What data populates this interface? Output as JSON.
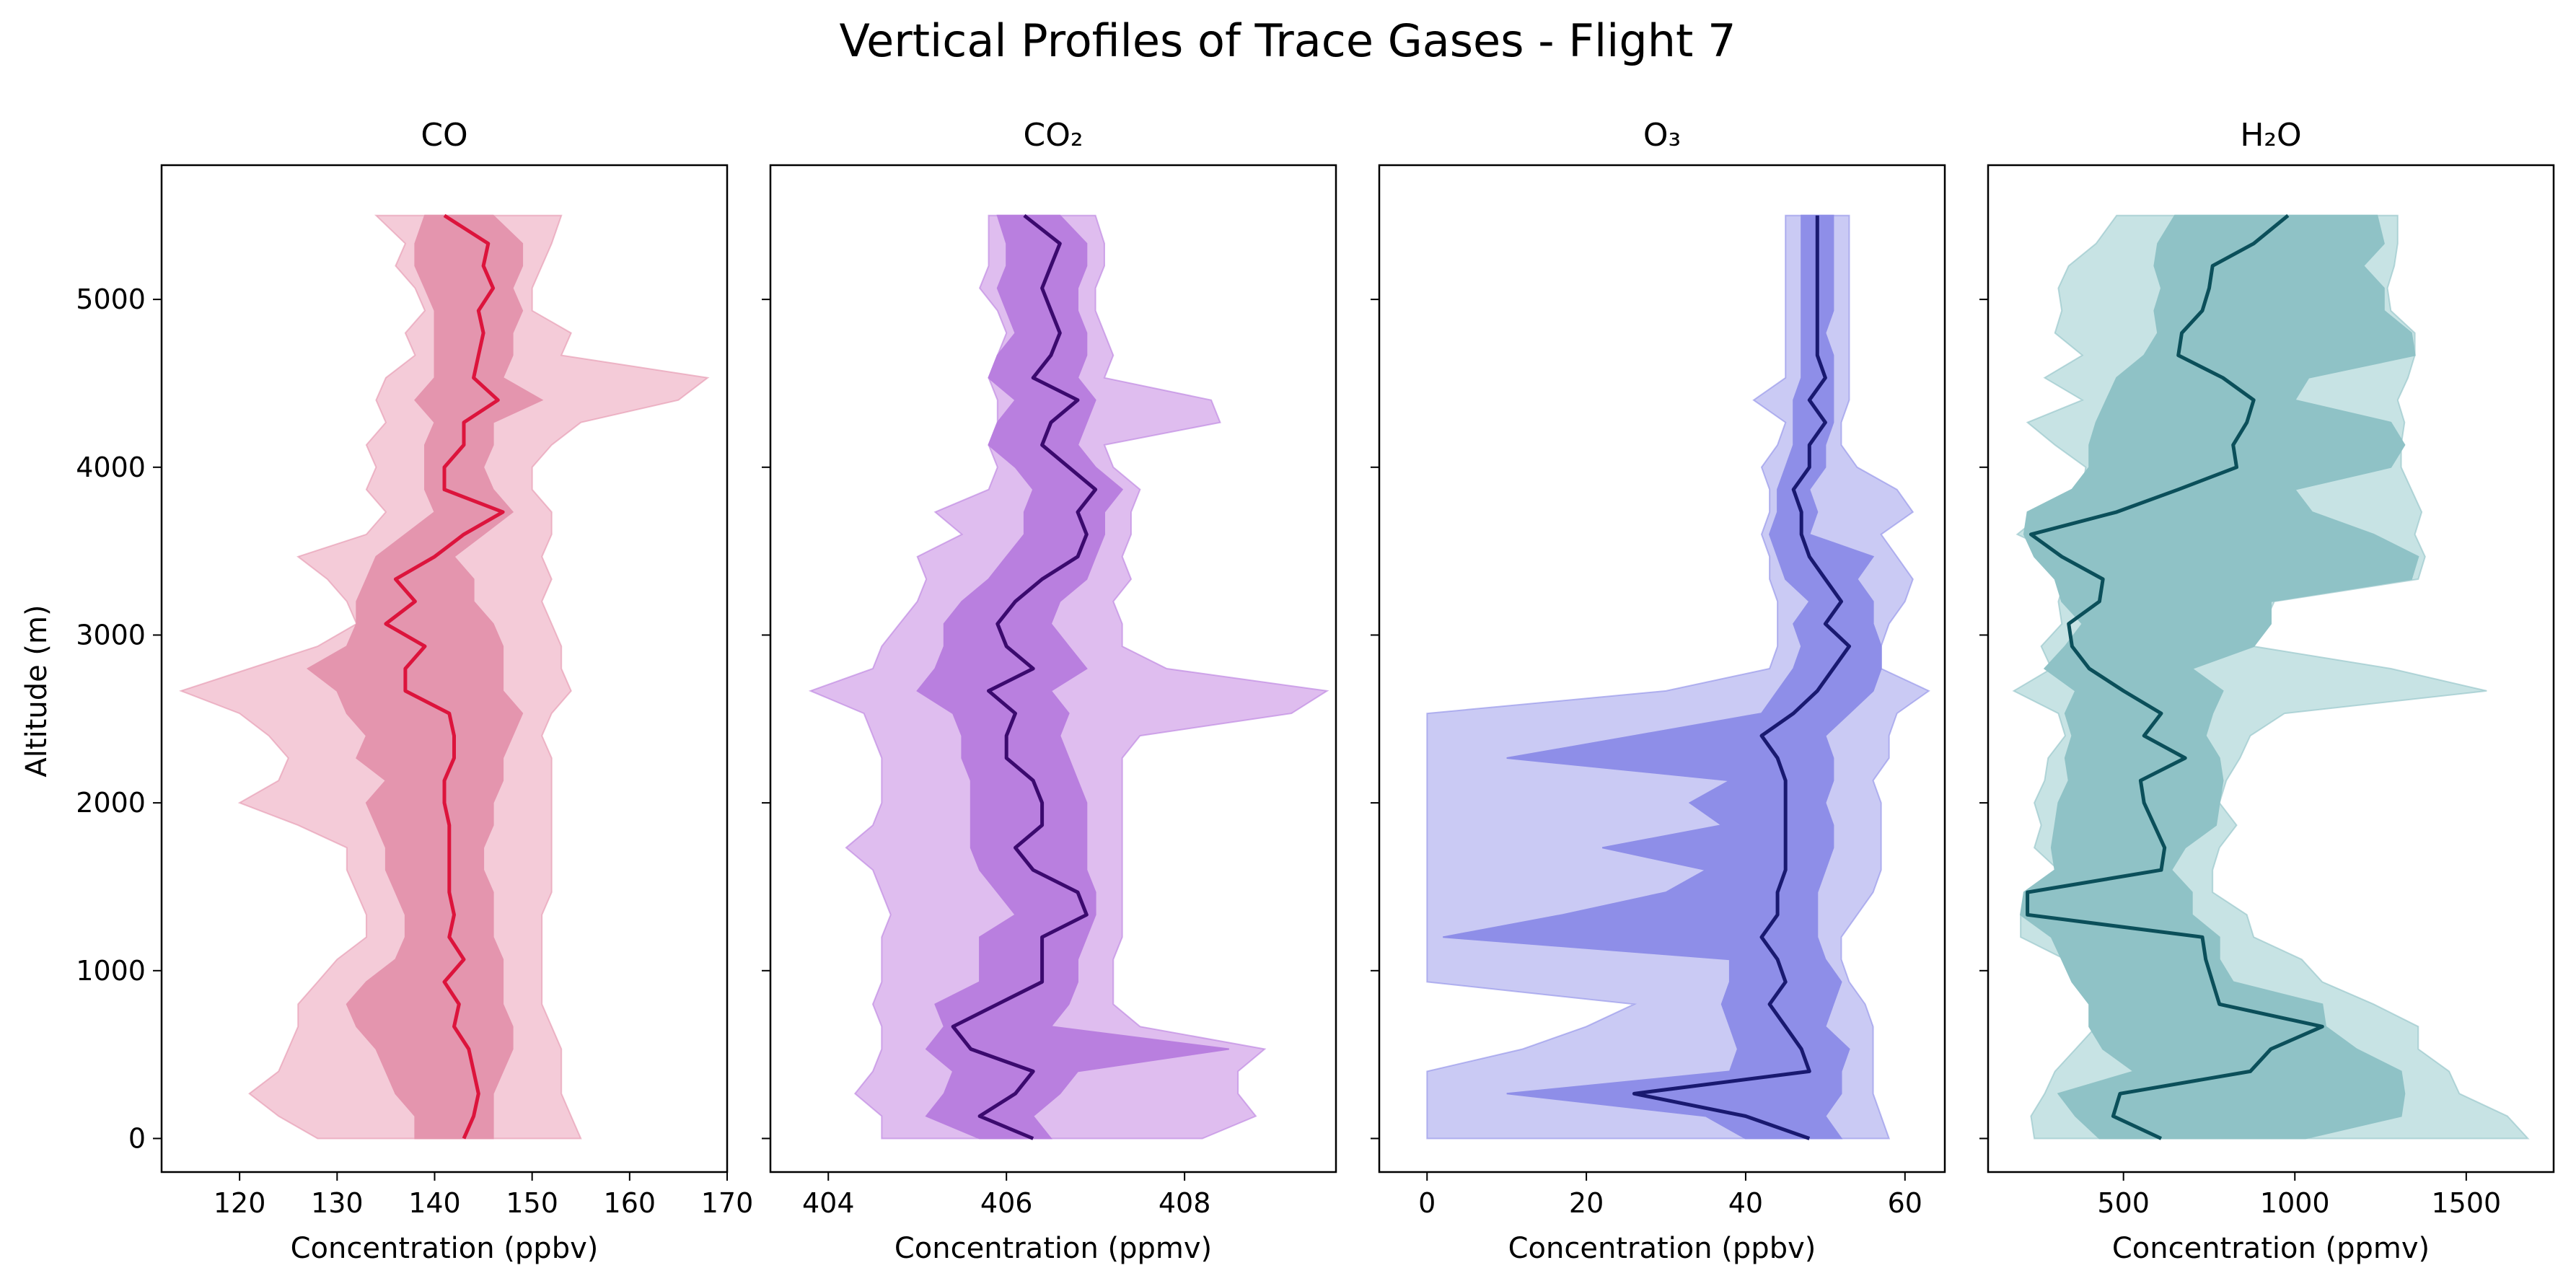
{
  "figure_title": "Vertical Profiles of Trace Gases - Flight 7",
  "y_axis_label": "Altitude (m)",
  "y_ticks": [
    0,
    1000,
    2000,
    3000,
    4000,
    5000
  ],
  "chart_data": [
    {
      "type": "line",
      "title": "CO",
      "xlabel": "Concentration (ppbv)",
      "ylabel": "Altitude (m)",
      "xlim": [
        112,
        170
      ],
      "ylim": [
        -200,
        5800
      ],
      "x_ticks": [
        120,
        130,
        140,
        150,
        160,
        170
      ],
      "color": "#dc143c",
      "band_colors": {
        "outer": "#f4cbd8",
        "inner": "#e495ae"
      },
      "altitude": [
        0,
        133,
        267,
        400,
        533,
        667,
        800,
        933,
        1067,
        1200,
        1333,
        1467,
        1600,
        1733,
        1867,
        2000,
        2133,
        2267,
        2400,
        2533,
        2667,
        2800,
        2933,
        3067,
        3200,
        3333,
        3467,
        3600,
        3733,
        3867,
        4000,
        4133,
        4267,
        4400,
        4533,
        4667,
        4800,
        4933,
        5067,
        5200,
        5333,
        5500
      ],
      "mean": [
        143,
        144,
        144.5,
        144,
        143.5,
        142,
        142.5,
        141,
        143,
        141.5,
        142,
        141.5,
        141.5,
        141.5,
        141.5,
        141,
        141,
        142,
        142,
        141.5,
        137,
        137,
        139,
        135,
        138,
        136,
        140,
        143,
        147,
        141,
        141,
        143,
        143,
        146.5,
        144,
        144.5,
        145,
        144.5,
        146,
        145,
        145.5,
        141
      ],
      "inner_lo": [
        138,
        138,
        136,
        135,
        134,
        132,
        131,
        133,
        136,
        137,
        137,
        136,
        135,
        135,
        134,
        133,
        135,
        132,
        133,
        131,
        130,
        127,
        131,
        132,
        132,
        133,
        134,
        137,
        140,
        139,
        139,
        139,
        140,
        138,
        140,
        140,
        140,
        140,
        139,
        138,
        138,
        139
      ],
      "inner_hi": [
        146,
        146,
        146,
        147,
        148,
        148,
        147,
        147,
        147,
        146,
        146,
        146,
        145,
        145,
        146,
        146,
        147,
        147,
        148,
        149,
        147,
        147,
        147,
        146,
        144,
        144,
        142,
        145,
        148,
        146,
        145,
        146,
        146,
        151,
        147,
        148,
        148,
        149,
        148,
        149,
        149,
        146
      ],
      "outer_lo": [
        128,
        124,
        121,
        124,
        125,
        126,
        126,
        128,
        130,
        133,
        133,
        132,
        131,
        131,
        126,
        120,
        124,
        125,
        123,
        120,
        114,
        121,
        128,
        132,
        131,
        129,
        126,
        133,
        135,
        133,
        134,
        133,
        135,
        134,
        135,
        138,
        137,
        139,
        138,
        136,
        137,
        134
      ],
      "outer_hi": [
        155,
        154,
        153,
        153,
        153,
        152,
        151,
        151,
        151,
        151,
        151,
        152,
        152,
        152,
        152,
        152,
        152,
        152,
        151,
        152,
        154,
        153,
        153,
        152,
        151,
        152,
        151,
        152,
        152,
        150,
        150,
        152,
        155,
        165,
        168,
        153,
        154,
        150,
        150,
        151,
        152,
        153
      ]
    },
    {
      "type": "line",
      "title": "CO₂",
      "xlabel": "Concentration (ppmv)",
      "ylabel": "Altitude (m)",
      "xlim": [
        403.35,
        409.7
      ],
      "ylim": [
        -200,
        5800
      ],
      "x_ticks": [
        404,
        406,
        408
      ],
      "color": "#3b0a6e",
      "band_colors": {
        "outer": "#dfbdef",
        "inner": "#b97fdf"
      },
      "altitude": [
        0,
        133,
        267,
        400,
        533,
        667,
        800,
        933,
        1067,
        1200,
        1333,
        1467,
        1600,
        1733,
        1867,
        2000,
        2133,
        2267,
        2400,
        2533,
        2667,
        2800,
        2933,
        3067,
        3200,
        3333,
        3467,
        3600,
        3733,
        3867,
        4000,
        4133,
        4267,
        4400,
        4533,
        4667,
        4800,
        4933,
        5067,
        5200,
        5333,
        5500
      ],
      "mean": [
        406.3,
        405.7,
        406.1,
        406.3,
        405.6,
        405.4,
        405.9,
        406.4,
        406.4,
        406.4,
        406.9,
        406.8,
        406.3,
        406.1,
        406.4,
        406.4,
        406.3,
        406.0,
        406.0,
        406.1,
        405.8,
        406.3,
        406.0,
        405.9,
        406.1,
        406.4,
        406.8,
        406.9,
        406.8,
        407.0,
        406.7,
        406.4,
        406.5,
        406.8,
        406.3,
        406.5,
        406.6,
        406.5,
        406.4,
        406.5,
        406.6,
        406.2
      ],
      "inner_lo": [
        405.7,
        405.1,
        405.3,
        405.4,
        405.1,
        405.3,
        405.2,
        405.7,
        405.7,
        405.7,
        406.1,
        405.9,
        405.7,
        405.6,
        405.6,
        405.6,
        405.6,
        405.5,
        405.5,
        405.4,
        405.0,
        405.2,
        405.3,
        405.3,
        405.5,
        405.8,
        406.0,
        406.2,
        406.2,
        406.3,
        406.1,
        405.8,
        405.9,
        406.1,
        405.8,
        405.9,
        406.1,
        406.0,
        405.9,
        406.0,
        406.0,
        405.9
      ],
      "inner_hi": [
        406.5,
        406.3,
        406.6,
        406.8,
        408.5,
        406.5,
        406.7,
        406.8,
        406.8,
        406.9,
        407.0,
        407.0,
        406.9,
        406.9,
        406.9,
        406.9,
        406.8,
        406.7,
        406.6,
        406.7,
        406.5,
        406.9,
        406.7,
        406.5,
        406.6,
        406.9,
        407.0,
        407.1,
        407.1,
        407.3,
        407.0,
        406.8,
        406.9,
        407.0,
        406.8,
        406.9,
        406.9,
        406.8,
        406.8,
        406.9,
        406.9,
        406.6
      ],
      "outer_lo": [
        404.6,
        404.6,
        404.3,
        404.5,
        404.6,
        404.6,
        404.5,
        404.6,
        404.6,
        404.6,
        404.7,
        404.6,
        404.5,
        404.2,
        404.5,
        404.6,
        404.6,
        404.6,
        404.5,
        404.4,
        403.8,
        404.5,
        404.6,
        404.8,
        405.0,
        405.1,
        405.0,
        405.5,
        405.2,
        405.8,
        405.9,
        405.8,
        405.9,
        405.9,
        405.8,
        405.9,
        406.0,
        405.9,
        405.7,
        405.8,
        405.8,
        405.8
      ],
      "outer_hi": [
        408.2,
        408.8,
        408.6,
        408.6,
        408.9,
        407.5,
        407.2,
        407.2,
        407.2,
        407.3,
        407.3,
        407.3,
        407.3,
        407.3,
        407.3,
        407.3,
        407.3,
        407.3,
        407.5,
        409.2,
        409.6,
        407.8,
        407.3,
        407.3,
        407.2,
        407.4,
        407.3,
        407.4,
        407.4,
        407.5,
        407.2,
        407.1,
        408.4,
        408.3,
        407.1,
        407.2,
        407.1,
        407.0,
        407.0,
        407.1,
        407.1,
        407.0
      ]
    },
    {
      "type": "line",
      "title": "O₃",
      "xlabel": "Concentration (ppbv)",
      "ylabel": "Altitude (m)",
      "xlim": [
        -6,
        65
      ],
      "ylim": [
        -200,
        5800
      ],
      "x_ticks": [
        0,
        20,
        40,
        60
      ],
      "color": "#191970",
      "band_colors": {
        "outer": "#cacaf4",
        "inner": "#8e8ee8"
      },
      "altitude": [
        0,
        133,
        267,
        400,
        533,
        667,
        800,
        933,
        1067,
        1200,
        1333,
        1467,
        1600,
        1733,
        1867,
        2000,
        2133,
        2267,
        2400,
        2533,
        2667,
        2800,
        2933,
        3067,
        3200,
        3333,
        3467,
        3600,
        3733,
        3867,
        4000,
        4133,
        4267,
        4400,
        4533,
        4667,
        4800,
        4933,
        5067,
        5200,
        5333,
        5500
      ],
      "mean": [
        48,
        40,
        26,
        48,
        47,
        45,
        43,
        45,
        44,
        42,
        44,
        44,
        45,
        45,
        45,
        45,
        45,
        44,
        42,
        46,
        49,
        51,
        53,
        50,
        52,
        50,
        48,
        47,
        47,
        46,
        48,
        48,
        50,
        48,
        50,
        49,
        49,
        49,
        49,
        49,
        49,
        49
      ],
      "inner_lo": [
        40,
        35,
        10,
        38,
        39,
        38,
        37,
        38,
        38,
        2,
        17,
        30,
        35,
        22,
        37,
        33,
        38,
        10,
        26,
        42,
        44,
        46,
        47,
        46,
        48,
        45,
        44,
        43,
        44,
        44,
        45,
        46,
        46,
        46,
        47,
        47,
        47,
        47,
        47,
        47,
        47,
        47
      ],
      "inner_hi": [
        52,
        50,
        52,
        52,
        53,
        50,
        51,
        52,
        50,
        49,
        49,
        49,
        50,
        51,
        51,
        50,
        51,
        51,
        50,
        53,
        56,
        57,
        57,
        56,
        56,
        54,
        56,
        48,
        49,
        48,
        50,
        50,
        51,
        51,
        51,
        51,
        50,
        51,
        51,
        51,
        51,
        51
      ],
      "outer_lo": [
        0,
        0,
        0,
        0,
        12,
        20,
        26,
        0,
        0,
        0,
        0,
        0,
        0,
        0,
        0,
        0,
        0,
        0,
        0,
        0,
        30,
        43,
        44,
        44,
        44,
        43,
        43,
        42,
        43,
        43,
        42,
        44,
        45,
        41,
        45,
        45,
        45,
        45,
        45,
        45,
        45,
        45
      ],
      "outer_hi": [
        58,
        57,
        56,
        56,
        56,
        56,
        55,
        53,
        52,
        52,
        54,
        56,
        57,
        57,
        57,
        57,
        56,
        58,
        58,
        59,
        63,
        57,
        57,
        58,
        60,
        61,
        59,
        57,
        61,
        59,
        54,
        52,
        52,
        53,
        53,
        53,
        53,
        53,
        53,
        53,
        53,
        53
      ]
    },
    {
      "type": "line",
      "title": "H₂O",
      "xlabel": "Concentration (ppmv)",
      "ylabel": "Altitude (m)",
      "xlim": [
        105,
        1755
      ],
      "ylim": [
        -200,
        5800
      ],
      "x_ticks": [
        500,
        1000,
        1500
      ],
      "color": "#0b4f5a",
      "band_colors": {
        "outer": "#c7e3e4",
        "inner": "#8fc2c6"
      },
      "altitude": [
        0,
        133,
        267,
        400,
        533,
        667,
        800,
        933,
        1067,
        1200,
        1333,
        1467,
        1600,
        1733,
        1867,
        2000,
        2133,
        2267,
        2400,
        2533,
        2667,
        2800,
        2933,
        3067,
        3200,
        3333,
        3467,
        3600,
        3733,
        3867,
        4000,
        4133,
        4267,
        4400,
        4533,
        4667,
        4800,
        4933,
        5067,
        5200,
        5333,
        5500
      ],
      "mean": [
        610,
        470,
        490,
        870,
        930,
        1080,
        780,
        760,
        740,
        730,
        220,
        220,
        610,
        620,
        590,
        560,
        550,
        680,
        560,
        610,
        500,
        400,
        350,
        340,
        430,
        440,
        320,
        230,
        480,
        660,
        830,
        820,
        860,
        880,
        790,
        660,
        670,
        730,
        750,
        760,
        880,
        980
      ],
      "inner_lo": [
        430,
        360,
        310,
        530,
        440,
        400,
        400,
        350,
        320,
        290,
        200,
        210,
        300,
        290,
        300,
        310,
        340,
        330,
        350,
        330,
        360,
        270,
        330,
        380,
        320,
        300,
        240,
        210,
        220,
        350,
        400,
        400,
        420,
        450,
        480,
        560,
        600,
        590,
        610,
        590,
        600,
        650
      ],
      "inner_hi": [
        1030,
        1310,
        1320,
        1310,
        1180,
        1090,
        1080,
        820,
        780,
        780,
        700,
        700,
        640,
        680,
        770,
        780,
        790,
        780,
        740,
        760,
        790,
        700,
        880,
        930,
        930,
        1340,
        1360,
        1230,
        1050,
        1000,
        1280,
        1320,
        1280,
        1000,
        1040,
        1350,
        1340,
        1260,
        1260,
        1200,
        1260,
        1240
      ],
      "outer_lo": [
        240,
        230,
        270,
        300,
        360,
        420,
        520,
        600,
        330,
        200,
        200,
        240,
        310,
        240,
        260,
        240,
        270,
        280,
        330,
        310,
        180,
        290,
        260,
        320,
        310,
        330,
        330,
        190,
        270,
        380,
        390,
        300,
        220,
        380,
        270,
        380,
        300,
        320,
        310,
        340,
        420,
        480
      ],
      "outer_hi": [
        1680,
        1620,
        1480,
        1450,
        1360,
        1360,
        1230,
        1080,
        1020,
        880,
        860,
        760,
        760,
        780,
        830,
        780,
        800,
        840,
        870,
        970,
        1560,
        1280,
        880,
        910,
        940,
        1360,
        1380,
        1350,
        1370,
        1340,
        1310,
        1310,
        1320,
        1300,
        1330,
        1350,
        1350,
        1280,
        1270,
        1290,
        1300,
        1300
      ]
    }
  ]
}
